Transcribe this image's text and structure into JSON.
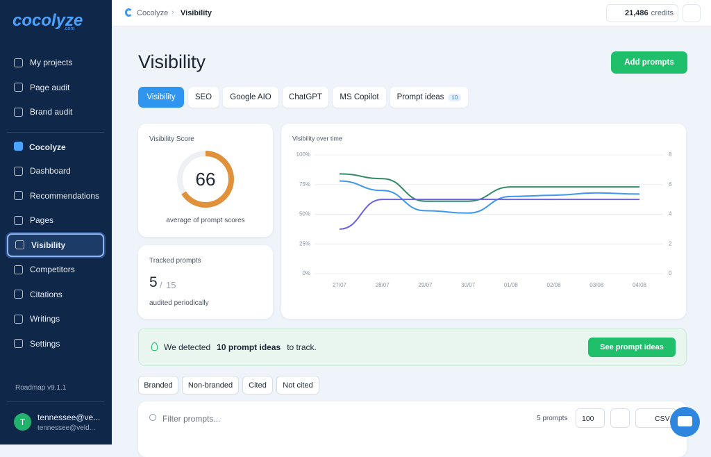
{
  "sidebar": {
    "logo": "cocolyze",
    "logo_sub": ".com",
    "nav": [
      "My projects",
      "Page audit",
      "Brand audit"
    ],
    "project": "Cocolyze",
    "project_nav": [
      "Dashboard",
      "Recommendations",
      "Pages",
      "Visibility",
      "Competitors",
      "Citations",
      "Writings",
      "Settings"
    ],
    "active": "Visibility",
    "roadmap": "Roadmap v9.1.1",
    "user": {
      "initial": "T",
      "name": "tennessee@ve...",
      "email": "tennessee@veld..."
    }
  },
  "header": {
    "breadcrumb": [
      "Cocolyze",
      "Visibility"
    ],
    "credits_value": "21,486",
    "credits_label": "credits"
  },
  "page": {
    "title": "Visibility",
    "add_button": "Add prompts",
    "tabs": [
      "Visibility",
      "SEO",
      "Google AIO",
      "ChatGPT",
      "MS Copilot",
      "Prompt ideas"
    ],
    "prompt_ideas_count": 10
  },
  "score_card": {
    "title": "Visibility Score",
    "value": 66,
    "scale": [
      0,
      100
    ],
    "caption": "average of prompt scores"
  },
  "tracked_card": {
    "title": "Tracked prompts",
    "count": 5,
    "separator": "/",
    "total": 15,
    "caption": "audited periodically"
  },
  "chart_data": {
    "type": "line",
    "title": "Visibility over time",
    "categories": [
      "27/07",
      "28/07",
      "29/07",
      "30/07",
      "01/08",
      "02/08",
      "03/08",
      "04/08"
    ],
    "series": [
      {
        "color": "#2e8b62",
        "values": [
          84,
          80,
          61,
          61,
          73,
          73,
          73,
          73
        ]
      },
      {
        "color": "#3d97ea",
        "values": [
          78,
          70,
          53,
          51,
          65,
          66,
          68,
          67
        ]
      },
      {
        "color": "#6e63e0",
        "axis": "y2",
        "values": [
          3,
          5,
          5,
          5,
          5,
          5,
          5,
          5
        ]
      }
    ],
    "ylim": [
      0,
      100
    ],
    "yticks": [
      {
        "value": 0,
        "label": "0%"
      },
      {
        "value": 25,
        "label": "25%"
      },
      {
        "value": 50,
        "label": "50%"
      },
      {
        "value": 75,
        "label": "75%"
      },
      {
        "value": 100,
        "label": "100%"
      }
    ],
    "y2lim": [
      0,
      8
    ],
    "y2ticks": [
      0,
      2,
      4,
      6,
      8
    ],
    "grid": true
  },
  "banner": {
    "before": "We detected",
    "highlight": "10 prompt ideas",
    "after": "to track.",
    "button": "See prompt ideas"
  },
  "filters": [
    "Branded",
    "Non-branded",
    "Cited",
    "Not cited"
  ],
  "table_toolbar": {
    "search_placeholder": "Filter prompts...",
    "count": "5 prompts",
    "page_size": "100",
    "export": "CSV"
  }
}
